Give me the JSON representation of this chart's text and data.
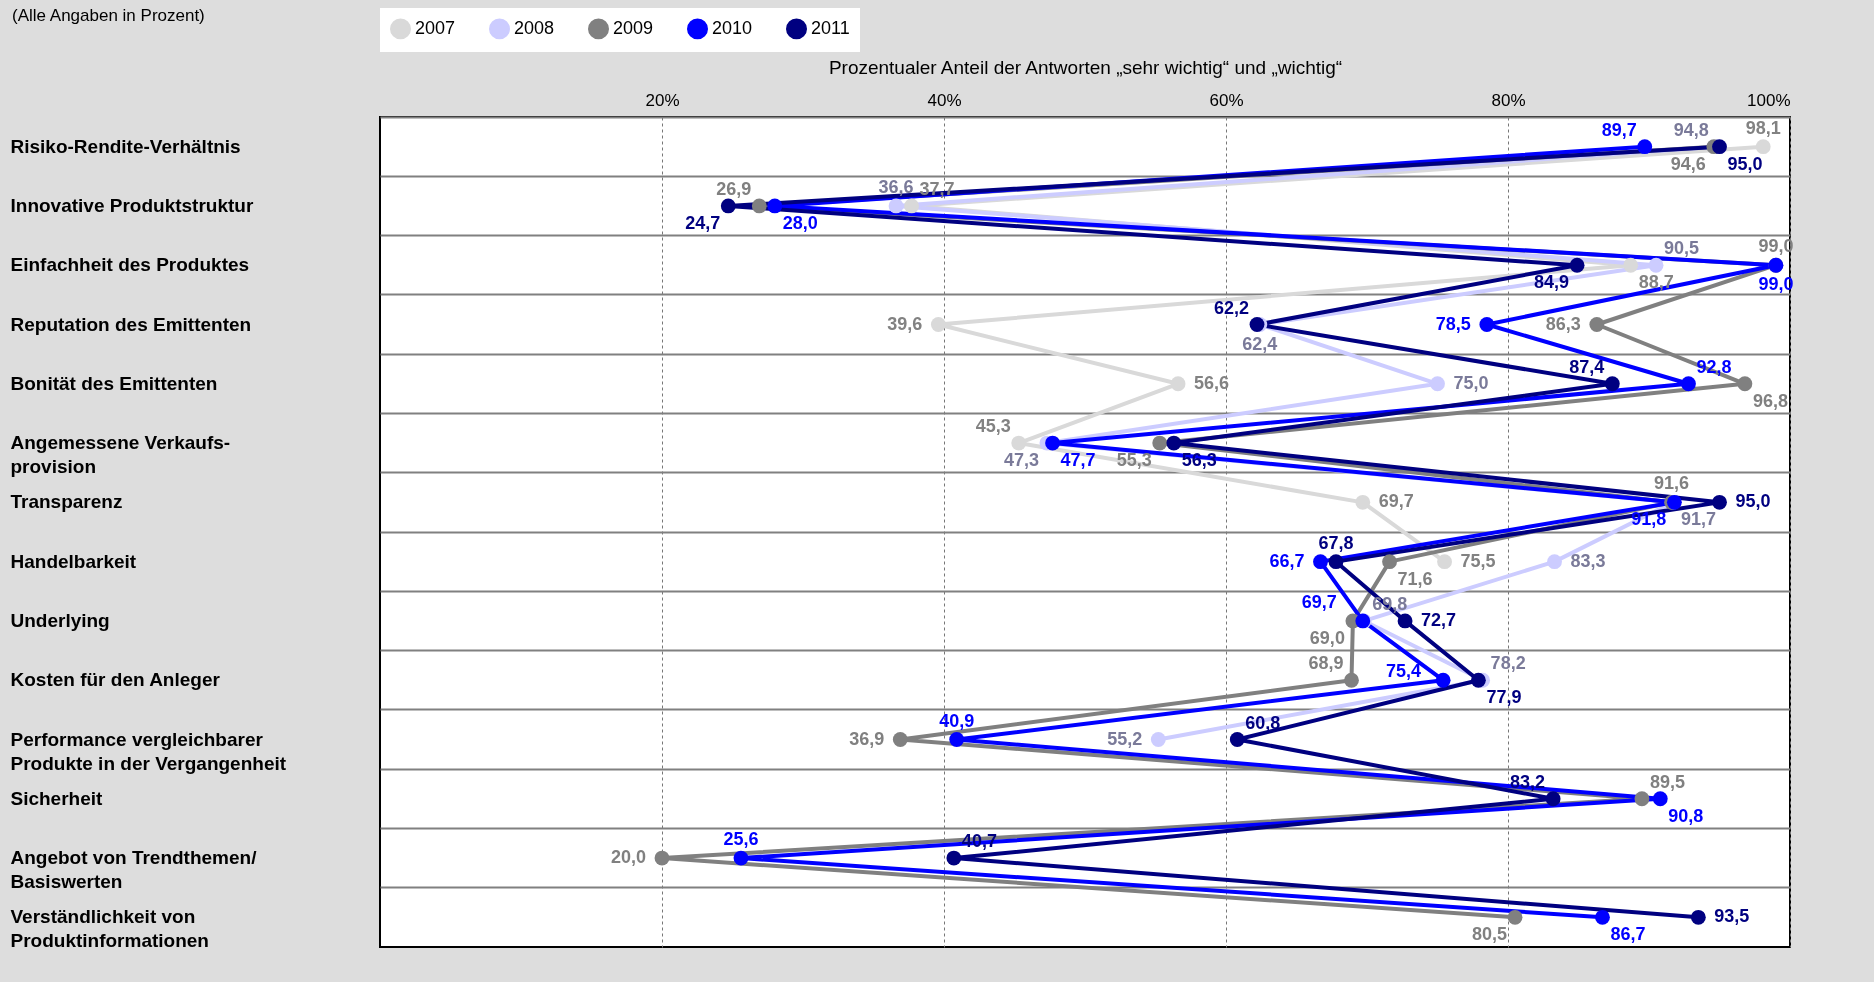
{
  "chart_data": {
    "type": "line",
    "orientation": "horizontal",
    "xlabel": "Prozentualer Anteil der Antworten „sehr wichtig“ und „wichtig“",
    "annotations": [
      "(Alle Angaben in Prozent)"
    ],
    "categories": [
      "Risiko-Rendite-Verhältnis",
      "Innovative Produktstruktur",
      "Einfachheit des Produktes",
      "Reputation des Emittenten",
      "Bonität des Emittenten",
      "Angemessene Verkaufs-\nprovision",
      "Transparenz",
      "Handelbarkeit",
      "Underlying",
      "Kosten für den Anleger",
      "Performance vergleichbarer\nProdukte in der Vergangenheit",
      "Sicherheit",
      "Angebot von Trendthemen/\nBasiswerten",
      "Verständlichkeit von\nProduktinformationen"
    ],
    "series": [
      {
        "name": "2007",
        "color": "#d9d9d9",
        "values": [
          98.1,
          37.7,
          88.7,
          39.6,
          56.6,
          45.3,
          69.7,
          75.5,
          null,
          null,
          null,
          null,
          null,
          null
        ],
        "value_labels": [
          "98,1",
          "37,7",
          "88,7",
          "39,6",
          "56,6",
          "45,3",
          "69,7",
          "75,5",
          null,
          null,
          null,
          null,
          null,
          null
        ]
      },
      {
        "name": "2008",
        "color": "#ccccff",
        "values": [
          94.8,
          36.6,
          90.5,
          62.4,
          75.0,
          47.3,
          91.7,
          83.3,
          69.8,
          78.2,
          55.2,
          null,
          null,
          null
        ],
        "value_labels": [
          "94,8",
          "36,6",
          "90,5",
          "62,4",
          "75,0",
          "47,3",
          "91,7",
          "83,3",
          "69,8",
          "78,2",
          "55,2",
          null,
          null,
          null
        ]
      },
      {
        "name": "2009",
        "color": "#808080",
        "values": [
          94.6,
          26.9,
          99.0,
          86.3,
          96.8,
          55.3,
          91.6,
          71.6,
          69.0,
          68.9,
          36.9,
          89.5,
          20.0,
          80.5
        ],
        "value_labels": [
          "94,6",
          "26,9",
          "99,0",
          "86,3",
          "96,8",
          "55,3",
          "91,6",
          "71,6",
          "69,0",
          "68,9",
          "36,9",
          "89,5",
          "20,0",
          "80,5"
        ]
      },
      {
        "name": "2010",
        "color": "#0000ff",
        "values": [
          89.7,
          28.0,
          99.0,
          78.5,
          92.8,
          47.7,
          91.8,
          66.7,
          69.7,
          75.4,
          40.9,
          90.8,
          25.6,
          86.7
        ],
        "value_labels": [
          "89,7",
          "28,0",
          "99,0",
          "78,5",
          "92,8",
          "47,7",
          "91,8",
          "66,7",
          "69,7",
          "75,4",
          "40,9",
          "90,8",
          "25,6",
          "86,7"
        ]
      },
      {
        "name": "2011",
        "color": "#000080",
        "values": [
          95.0,
          24.7,
          84.9,
          62.2,
          87.4,
          56.3,
          95.0,
          67.8,
          72.7,
          77.9,
          60.8,
          83.2,
          40.7,
          93.5
        ],
        "value_labels": [
          "95,0",
          "24,7",
          "84,9",
          "62,2",
          "87,4",
          "56,3",
          "95,0",
          "67,8",
          "72,7",
          "77,9",
          "60,8",
          "83,2",
          "40,7",
          "93,5"
        ]
      }
    ],
    "xlim": [
      0,
      100
    ],
    "xticks": [
      {
        "value": 20,
        "label": "20%"
      },
      {
        "value": 40,
        "label": "40%"
      },
      {
        "value": 60,
        "label": "60%"
      },
      {
        "value": 80,
        "label": "80%"
      },
      {
        "value": 100,
        "label": "100%"
      }
    ],
    "grid": true,
    "legend": "top",
    "marker": "circle",
    "line_style": "solid"
  }
}
